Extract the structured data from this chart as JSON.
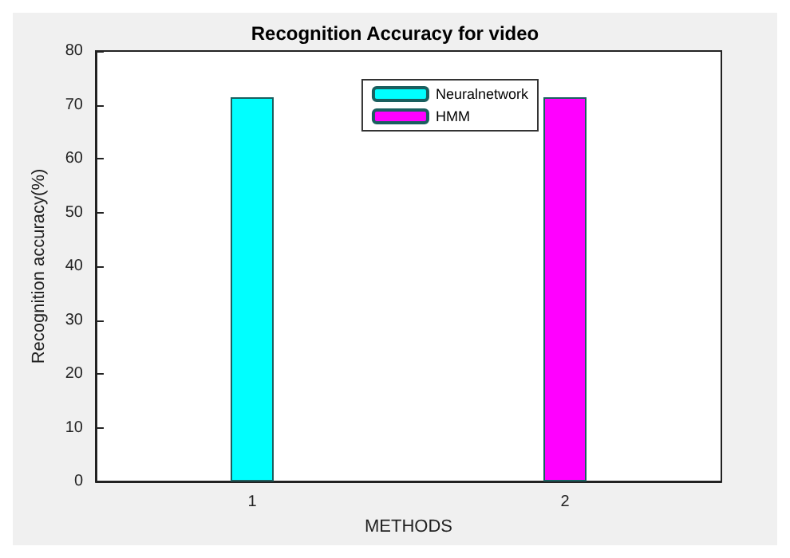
{
  "chart_data": {
    "type": "bar",
    "title": "Recognition Accuracy for video",
    "xlabel": "METHODS",
    "ylabel": "Recognition accuracy(%)",
    "categories": [
      "1",
      "2"
    ],
    "series": [
      {
        "name": "Neuralnetwork",
        "color": "#00ffff",
        "values": [
          71.4,
          null
        ]
      },
      {
        "name": "HMM",
        "color": "#ff00ff",
        "values": [
          null,
          71.4
        ]
      }
    ],
    "ylim": [
      0,
      80
    ],
    "yticks": [
      0,
      10,
      20,
      30,
      40,
      50,
      60,
      70,
      80
    ],
    "grid": false,
    "legend": "top right"
  }
}
